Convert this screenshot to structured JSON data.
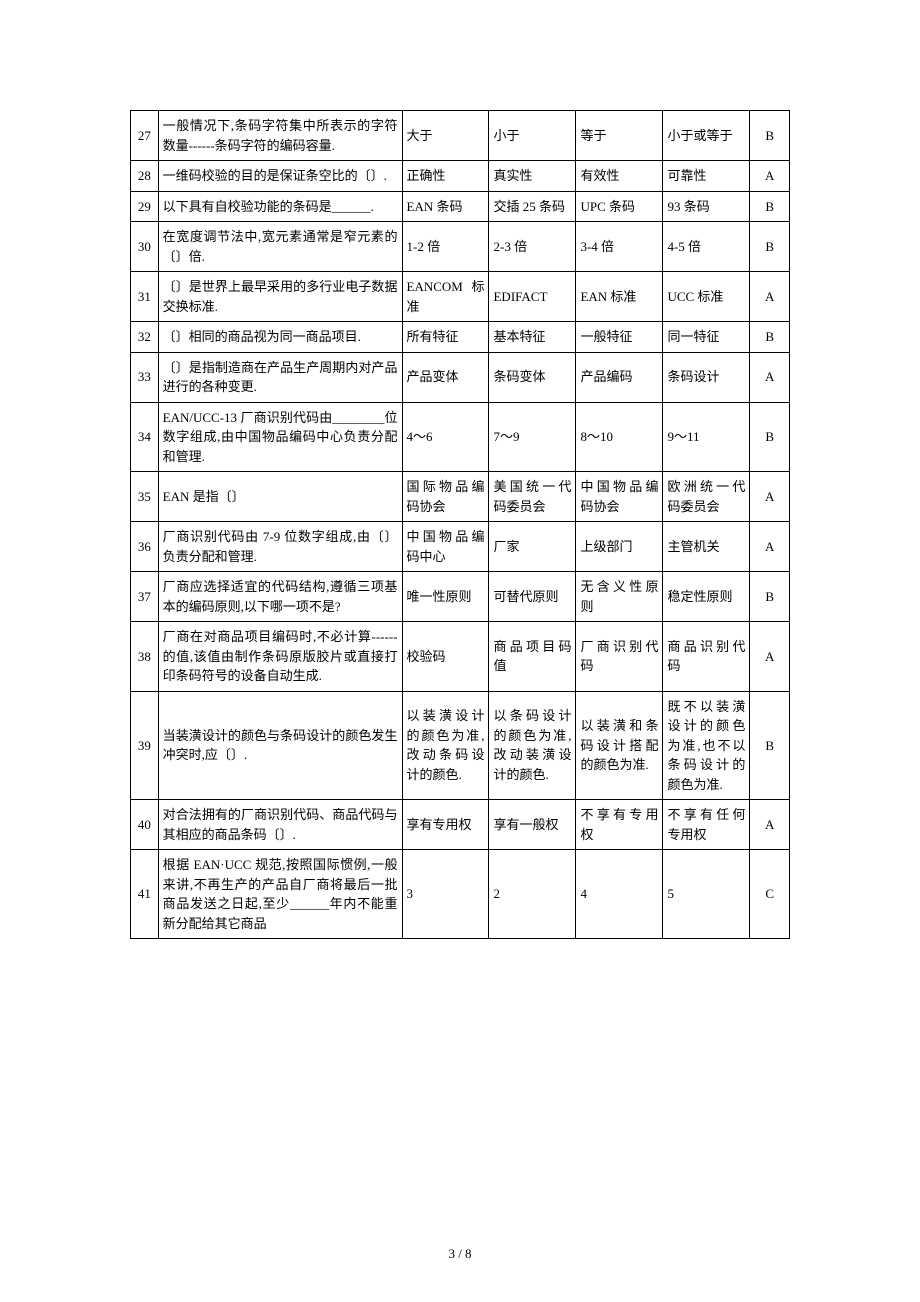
{
  "footer": "3 / 8",
  "columns": [
    "num",
    "question",
    "optA",
    "optB",
    "optC",
    "optD",
    "answer"
  ],
  "rows": [
    {
      "num": "27",
      "question": "一般情况下,条码字符集中所表示的字符数量------条码字符的编码容量.",
      "optA": "大于",
      "optB": "小于",
      "optC": "等于",
      "optD": "小于或等于",
      "answer": "B"
    },
    {
      "num": "28",
      "question": "一维码校验的目的是保证条空比的〔〕.",
      "optA": "正确性",
      "optB": "真实性",
      "optC": "有效性",
      "optD": "可靠性",
      "answer": "A"
    },
    {
      "num": "29",
      "question": "以下具有自校验功能的条码是______.",
      "optA": "EAN 条码",
      "optB": "交插 25 条码",
      "optC": "UPC 条码",
      "optD": "93 条码",
      "answer": "B"
    },
    {
      "num": "30",
      "question": "在宽度调节法中,宽元素通常是窄元素的〔〕倍.",
      "optA": "1-2 倍",
      "optB": "2-3 倍",
      "optC": "3-4 倍",
      "optD": "4-5 倍",
      "answer": "B"
    },
    {
      "num": "31",
      "question": "〔〕是世界上最早采用的多行业电子数据交换标准.",
      "optA": "EANCOM标准",
      "optB": "EDIFACT",
      "optC": "EAN 标准",
      "optD": "UCC 标准",
      "answer": "A"
    },
    {
      "num": "32",
      "question": "〔〕相同的商品视为同一商品项目.",
      "optA": "所有特征",
      "optB": "基本特征",
      "optC": "一般特征",
      "optD": "同一特征",
      "answer": "B"
    },
    {
      "num": "33",
      "question": "〔〕是指制造商在产品生产周期内对产品进行的各种变更.",
      "optA": "产品变体",
      "optB": "条码变体",
      "optC": "产品编码",
      "optD": "条码设计",
      "answer": "A"
    },
    {
      "num": "34",
      "question": "EAN/UCC-13 厂商识别代码由________位数字组成,由中国物品编码中心负责分配和管理.",
      "optA": "4～6",
      "optB": "7～9",
      "optC": "8～10",
      "optD": "9～11",
      "answer": "B"
    },
    {
      "num": "35",
      "question": "EAN 是指〔〕",
      "optA": "国际物品编码协会",
      "optB": "美国统一代码委员会",
      "optC": "中国物品编码协会",
      "optD": "欧洲统一代码委员会",
      "answer": "A"
    },
    {
      "num": "36",
      "question": "厂商识别代码由 7-9 位数字组成,由〔〕负责分配和管理.",
      "optA": "中国物品编码中心",
      "optB": "厂家",
      "optC": "上级部门",
      "optD": "主管机关",
      "answer": "A"
    },
    {
      "num": "37",
      "question": "厂商应选择适宜的代码结构,遵循三项基本的编码原则,以下哪一项不是?",
      "optA": "唯一性原则",
      "optB": "可替代原则",
      "optC": "无含义性原则",
      "optD": "稳定性原则",
      "answer": "B"
    },
    {
      "num": "38",
      "question": "厂商在对商品项目编码时,不必计算------的值,该值由制作条码原版胶片或直接打印条码符号的设备自动生成.",
      "optA": "校验码",
      "optB": "商品项目码值",
      "optC": "厂商识别代码",
      "optD": "商品识别代码",
      "answer": "A"
    },
    {
      "num": "39",
      "question": "当装潢设计的颜色与条码设计的颜色发生冲突时,应〔〕.",
      "optA": "以装潢设计的颜色为准,改动条码设计的颜色.",
      "optB": "以条码设计的颜色为准,改动装潢设计的颜色.",
      "optC": "以装潢和条码设计搭配的颜色为准.",
      "optD": "既不以装潢设计的颜色为准,也不以条码设计的颜色为准.",
      "answer": "B"
    },
    {
      "num": "40",
      "question": "对合法拥有的厂商识别代码、商品代码与其相应的商品条码〔〕.",
      "optA": "享有专用权",
      "optB": "享有一般权",
      "optC": "不享有专用权",
      "optD": "不享有任何专用权",
      "answer": "A"
    },
    {
      "num": "41",
      "question": "根据 EAN·UCC 规范,按照国际惯例,一般来讲,不再生产的产品自厂商将最后一批商品发送之日起,至少______年内不能重新分配给其它商品",
      "optA": "3",
      "optB": "2",
      "optC": "4",
      "optD": "5",
      "answer": "C"
    }
  ]
}
